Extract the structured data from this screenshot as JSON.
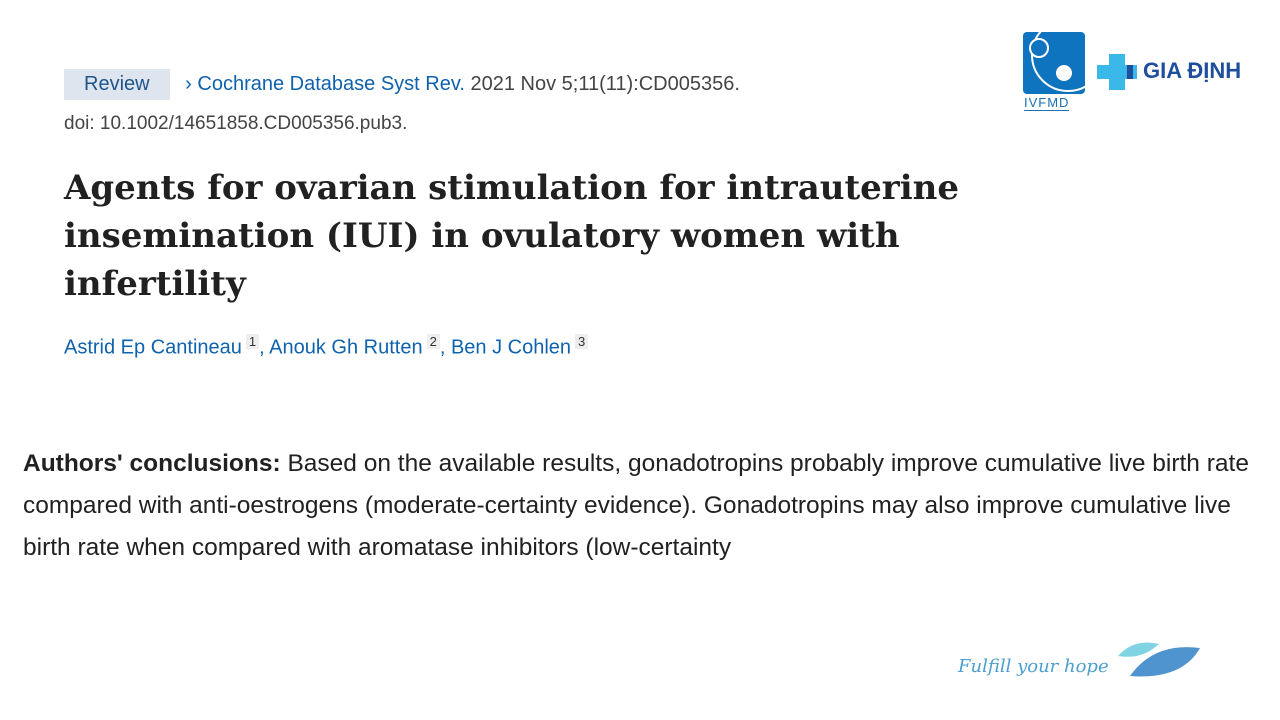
{
  "meta": {
    "badge": "Review",
    "chevron": "›",
    "journal": "Cochrane Database Syst Rev.",
    "citation": "2021 Nov 5;11(11):CD005356.",
    "doi": "doi: 10.1002/14651858.CD005356.pub3."
  },
  "title": "Agents for ovarian stimulation for intrauterine insemination (IUI) in ovulatory women with infertility",
  "authors": [
    {
      "name": "Astrid Ep Cantineau",
      "aff": "1"
    },
    {
      "name": "Anouk Gh Rutten",
      "aff": "2"
    },
    {
      "name": "Ben J Cohlen",
      "aff": "3"
    }
  ],
  "conclusions": {
    "label": "Authors' conclusions:",
    "text": " Based on the available results, gonadotropins probably improve cumulative live birth rate compared with anti-oestrogens (moderate-certainty evidence). Gonadotropins may also improve cumulative live birth rate when compared with aromatase inhibitors (low-certainty"
  },
  "logos": {
    "ivfmd": "IVFMD",
    "giadinh": "GIA ĐỊNH",
    "slogan": "Fulfill your hope",
    "colors": {
      "ivfmd": "#0f74bf",
      "giadinh": "#1f4e9c",
      "cross": "#3ab8ea"
    }
  }
}
